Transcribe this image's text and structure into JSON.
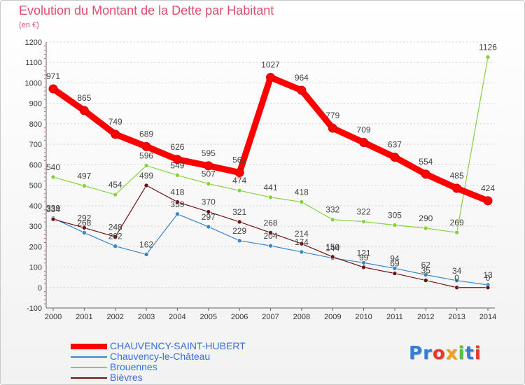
{
  "chart_data": {
    "type": "line",
    "title": "Evolution du Montant de la Dette par Habitant",
    "subtitle": "(en €)",
    "x": [
      "2000",
      "2001",
      "2002",
      "2003",
      "2004",
      "2005",
      "2006",
      "2007",
      "2008",
      "2009",
      "2010",
      "2011",
      "2012",
      "2013",
      "2014"
    ],
    "ylim": [
      -100,
      1200
    ],
    "yticks": [
      -100,
      0,
      100,
      200,
      300,
      400,
      500,
      600,
      700,
      800,
      900,
      1000,
      1100,
      1200
    ],
    "grid": true,
    "legend_position": "bottom-left",
    "series": [
      {
        "name": "CHAUVENCY-SAINT-HUBERT",
        "color": "#ff0000",
        "values": [
          971,
          865,
          749,
          689,
          626,
          595,
          562,
          1027,
          964,
          779,
          709,
          637,
          554,
          485,
          424
        ]
      },
      {
        "name": "Chauvency-le-Château",
        "color": "#3a87c8",
        "values": [
          339,
          268,
          202,
          162,
          359,
          297,
          229,
          204,
          174,
          144,
          121,
          94,
          62,
          34,
          13
        ]
      },
      {
        "name": "Brouennes",
        "color": "#88d040",
        "values": [
          540,
          497,
          454,
          596,
          549,
          507,
          474,
          441,
          418,
          332,
          322,
          305,
          290,
          269,
          1126
        ]
      },
      {
        "name": "Bièvres",
        "color": "#6b1414",
        "values": [
          334,
          292,
          248,
          499,
          418,
          370,
          321,
          268,
          214,
          150,
          99,
          69,
          35,
          0,
          0
        ]
      }
    ]
  },
  "logo": {
    "text": "Proxiti",
    "colors": [
      "#2f7fd9",
      "#2f7fd9",
      "#e83a2a",
      "#f0a020",
      "#55c040",
      "#2f7fd9",
      "#e83a2a"
    ]
  }
}
